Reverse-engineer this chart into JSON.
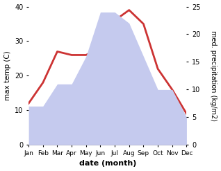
{
  "months": [
    "Jan",
    "Feb",
    "Mar",
    "Apr",
    "May",
    "Jun",
    "Jul",
    "Aug",
    "Sep",
    "Oct",
    "Nov",
    "Dec"
  ],
  "max_temp": [
    12,
    18,
    27,
    26,
    26,
    28,
    36,
    39,
    35,
    22,
    16,
    9
  ],
  "precipitation": [
    7,
    7,
    11,
    11,
    16,
    24,
    24,
    22,
    16,
    10,
    10,
    5
  ],
  "temp_color": "#cc3333",
  "precip_color_fill": "#c5caee",
  "ylabel_left": "max temp (C)",
  "ylabel_right": "med. precipitation (kg/m2)",
  "xlabel": "date (month)",
  "ylim_left": [
    0,
    40
  ],
  "ylim_right": [
    0,
    25
  ],
  "temp_linewidth": 2.0,
  "bg_color": "#ffffff"
}
